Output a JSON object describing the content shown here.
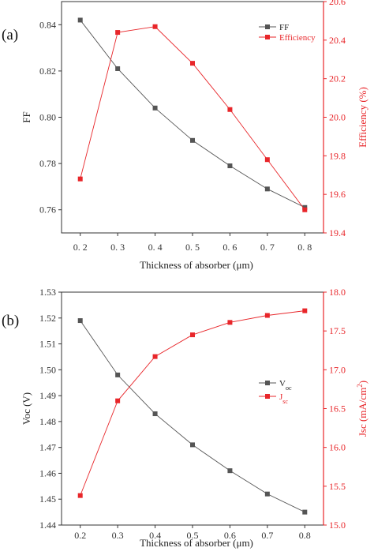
{
  "chart_data": [
    {
      "panel_label": "(a)",
      "type": "line",
      "x": [
        0.2,
        0.3,
        0.4,
        0.5,
        0.6,
        0.7,
        0.8
      ],
      "x_tick_labels": [
        "0. 2",
        "0. 3",
        "0. 4",
        "0. 5",
        "0. 6",
        "0. 7",
        "0. 8"
      ],
      "xlabel": "Thickness of absorber (μm)",
      "ylabel_left": "FF",
      "ylabel_right": "Efficiency (%)",
      "ylim_left": [
        0.75,
        0.85
      ],
      "ylim_right": [
        19.4,
        20.6
      ],
      "left_ticks": [
        "0.76",
        "0.78",
        "0.80",
        "0.82",
        "0.84"
      ],
      "right_ticks": [
        "19.4",
        "19.6",
        "19.8",
        "20.0",
        "20.2",
        "20.4",
        "20.6"
      ],
      "legend_position": "top-right",
      "series": [
        {
          "name": "FF",
          "axis": "left",
          "color": "#555555",
          "values": [
            0.842,
            0.821,
            0.804,
            0.79,
            0.779,
            0.769,
            0.761
          ]
        },
        {
          "name": "Efficiency",
          "axis": "right",
          "color": "#e8262a",
          "values": [
            19.68,
            20.44,
            20.47,
            20.28,
            20.04,
            19.78,
            19.52
          ]
        }
      ]
    },
    {
      "panel_label": "(b)",
      "type": "line",
      "x": [
        0.2,
        0.3,
        0.4,
        0.5,
        0.6,
        0.7,
        0.8
      ],
      "x_tick_labels": [
        "0.2",
        "0.3",
        "0.4",
        "0.5",
        "0.6",
        "0.7",
        "0.8"
      ],
      "xlabel": "Thickness of absorber (μm)",
      "ylabel_left": "Voc (V)",
      "ylabel_right_main": "Jsc (mA/cm",
      "ylabel_right_sup": "2",
      "ylabel_right_end": ")",
      "ylim_left": [
        1.44,
        1.53
      ],
      "ylim_right": [
        15.0,
        18.0
      ],
      "left_ticks": [
        "1.44",
        "1.45",
        "1.46",
        "1.47",
        "1.48",
        "1.49",
        "1.50",
        "1.51",
        "1.52",
        "1.53"
      ],
      "right_ticks": [
        "15.0",
        "15.5",
        "16.0",
        "16.5",
        "17.0",
        "17.5",
        "18.0"
      ],
      "legend_position": "center-right",
      "series": [
        {
          "name_main": "V",
          "name_sub": "oc",
          "axis": "left",
          "color": "#555555",
          "values": [
            1.519,
            1.498,
            1.483,
            1.471,
            1.461,
            1.452,
            1.445
          ]
        },
        {
          "name_main": "J",
          "name_sub": "sc",
          "axis": "right",
          "color": "#e8262a",
          "values": [
            15.38,
            16.6,
            17.17,
            17.45,
            17.61,
            17.7,
            17.76
          ]
        }
      ]
    }
  ]
}
